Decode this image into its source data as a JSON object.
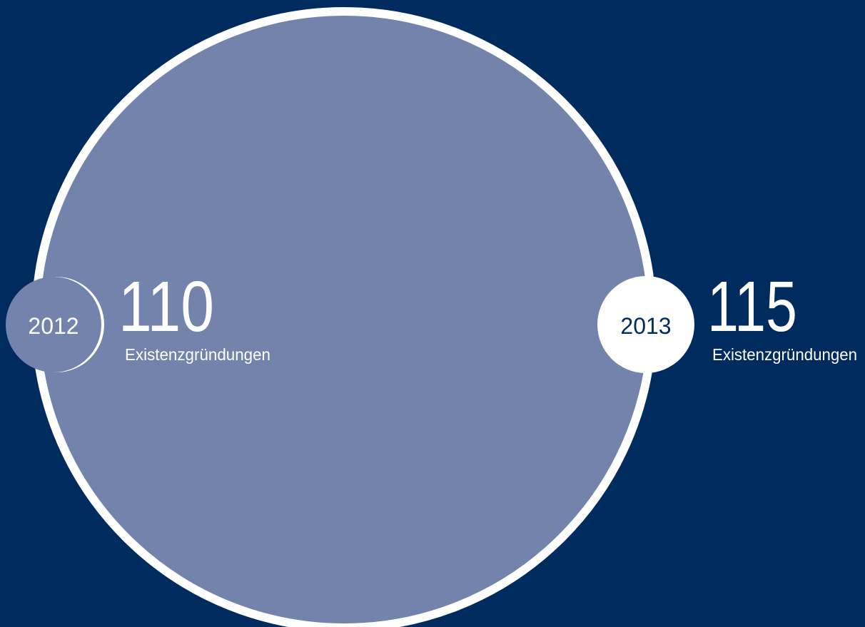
{
  "items": [
    {
      "year": "2012",
      "count": "110",
      "label": "Existenzgründungen"
    },
    {
      "year": "2013",
      "count": "115",
      "label": "Existenzgründungen"
    }
  ]
}
